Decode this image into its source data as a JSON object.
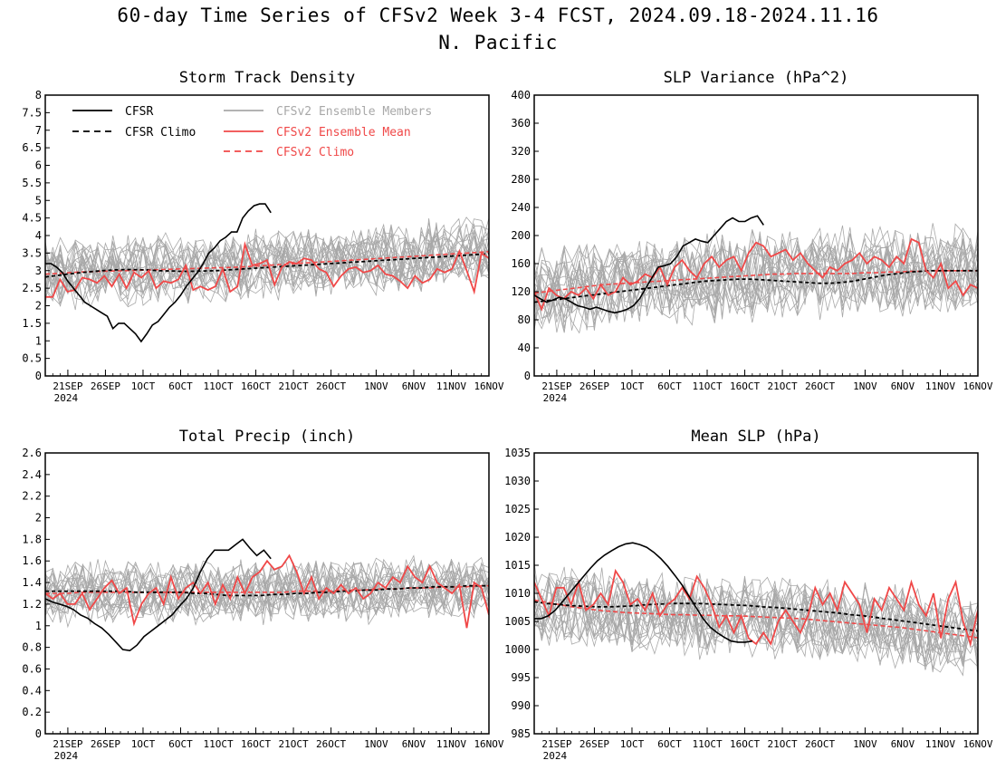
{
  "title_line1": "60-day Time Series of CFSv2 Week 3-4 FCST, 2024.09.18-2024.11.16",
  "title_line2": "N. Pacific",
  "legend": {
    "cfsr": "CFSR",
    "cfsr_climo": "CFSR Climo",
    "members": "CFSv2 Ensemble Members",
    "ens_mean": "CFSv2 Ensemble Mean",
    "cfsv2_climo": "CFSv2 Climo"
  },
  "x_ticks": [
    "21SEP",
    "26SEP",
    "1OCT",
    "6OCT",
    "11OCT",
    "16OCT",
    "21OCT",
    "26OCT",
    "1NOV",
    "6NOV",
    "11NOV",
    "16NOV"
  ],
  "x_year_label": "2024",
  "colors": {
    "cfsr": "#000000",
    "members": "#a8a8a8",
    "ens_mean": "#f04848",
    "climo_red": "#f04848"
  },
  "chart_data": [
    {
      "type": "line",
      "title": "Storm Track Density",
      "x_start": "2024-09-18",
      "x_end": "2024-11-16",
      "ylim": [
        0,
        8
      ],
      "yticks": [
        "0",
        "0.5",
        "1",
        "1.5",
        "2",
        "2.5",
        "3",
        "3.5",
        "4",
        "4.5",
        "5",
        "5.5",
        "6",
        "6.5",
        "7",
        "7.5",
        "8"
      ],
      "cfsr": [
        3.2,
        3.2,
        3.1,
        2.95,
        2.7,
        2.5,
        2.3,
        2.1,
        2.0,
        1.9,
        1.8,
        1.7,
        1.35,
        1.5,
        1.5,
        1.35,
        1.2,
        0.98,
        1.2,
        1.45,
        1.55,
        1.75,
        1.95,
        2.1,
        2.3,
        2.55,
        2.75,
        2.95,
        3.2,
        3.5,
        3.65,
        3.85,
        3.95,
        4.1,
        4.1,
        4.5,
        4.7,
        4.85,
        4.9,
        4.9,
        4.65
      ],
      "cfsr_climo": [
        2.82,
        2.86,
        2.9,
        2.94,
        2.97,
        3.0,
        3.02,
        3.03,
        3.03,
        3.02,
        3.0,
        2.99,
        2.98,
        2.98,
        2.99,
        3.0,
        3.02,
        3.04,
        3.06,
        3.08,
        3.1,
        3.12,
        3.14,
        3.16,
        3.18,
        3.2,
        3.22,
        3.24,
        3.26,
        3.28,
        3.3,
        3.32,
        3.34,
        3.36,
        3.38,
        3.4,
        3.42,
        3.44,
        3.46,
        3.48
      ],
      "ens_mean": [
        2.25,
        2.25,
        2.75,
        2.4,
        2.45,
        2.8,
        2.75,
        2.65,
        2.85,
        2.55,
        2.9,
        2.5,
        2.95,
        2.8,
        3.0,
        2.5,
        2.7,
        2.65,
        2.75,
        3.15,
        2.45,
        2.55,
        2.45,
        2.55,
        3.05,
        2.4,
        2.55,
        3.75,
        3.15,
        3.2,
        3.3,
        2.6,
        3.1,
        3.25,
        3.2,
        3.35,
        3.3,
        3.05,
        2.95,
        2.55,
        2.85,
        3.05,
        3.1,
        2.95,
        3.0,
        3.15,
        2.9,
        2.85,
        2.7,
        2.5,
        2.85,
        2.65,
        2.75,
        3.05,
        2.95,
        3.05,
        3.55,
        3.0,
        2.4,
        3.5,
        3.35
      ],
      "cfsv2_climo": [
        2.9,
        2.92,
        2.94,
        2.96,
        2.97,
        2.98,
        2.99,
        3.0,
        3.01,
        3.02,
        3.03,
        3.04,
        3.05,
        3.06,
        3.07,
        3.08,
        3.09,
        3.1,
        3.12,
        3.14,
        3.16,
        3.18,
        3.2,
        3.22,
        3.24,
        3.26,
        3.28,
        3.3,
        3.32,
        3.34,
        3.36,
        3.38,
        3.4,
        3.42,
        3.44,
        3.46,
        3.48,
        3.5,
        3.52,
        3.54
      ],
      "member_center": 2.95,
      "member_spread": 1.1,
      "member_min": 0
    },
    {
      "type": "line",
      "title": "SLP Variance (hPa^2)",
      "x_start": "2024-09-18",
      "x_end": "2024-11-16",
      "ylim": [
        0,
        400
      ],
      "yticks": [
        "0",
        "40",
        "80",
        "120",
        "160",
        "200",
        "240",
        "280",
        "320",
        "360",
        "400"
      ],
      "cfsr": [
        115,
        110,
        105,
        108,
        112,
        110,
        105,
        100,
        98,
        95,
        98,
        95,
        92,
        90,
        92,
        95,
        100,
        110,
        125,
        140,
        155,
        157,
        160,
        170,
        185,
        190,
        195,
        192,
        190,
        200,
        210,
        220,
        225,
        220,
        220,
        225,
        228,
        215
      ],
      "cfsr_climo": [
        105,
        107,
        109,
        111,
        113,
        115,
        117,
        119,
        121,
        123,
        125,
        127,
        129,
        131,
        133,
        135,
        136,
        137,
        138,
        138,
        137,
        136,
        135,
        134,
        133,
        132,
        132,
        133,
        135,
        138,
        141,
        144,
        146,
        148,
        149,
        150,
        150,
        150,
        150,
        150
      ],
      "ens_mean": [
        120,
        95,
        125,
        115,
        110,
        120,
        115,
        125,
        110,
        130,
        115,
        120,
        140,
        130,
        135,
        145,
        140,
        155,
        130,
        155,
        165,
        150,
        140,
        160,
        170,
        155,
        165,
        170,
        150,
        175,
        190,
        185,
        170,
        175,
        180,
        165,
        175,
        160,
        150,
        140,
        155,
        150,
        160,
        165,
        175,
        160,
        170,
        165,
        155,
        170,
        160,
        195,
        190,
        150,
        140,
        160,
        125,
        135,
        115,
        130,
        125
      ],
      "cfsv2_climo": [
        118,
        120,
        122,
        124,
        126,
        128,
        130,
        131,
        132,
        133,
        134,
        135,
        136,
        137,
        138,
        139,
        140,
        141,
        142,
        143,
        144,
        145,
        145,
        146,
        146,
        146,
        146,
        146,
        146,
        147,
        147,
        148,
        148,
        149,
        149,
        150,
        150,
        150,
        150,
        150
      ],
      "member_center": 145,
      "member_spread": 70,
      "member_min": 0
    },
    {
      "type": "line",
      "title": "Total Precip (inch)",
      "x_start": "2024-09-18",
      "x_end": "2024-11-16",
      "ylim": [
        0,
        2.6
      ],
      "yticks": [
        "0",
        "0.2",
        "0.4",
        "0.6",
        "0.8",
        "1",
        "1.2",
        "1.4",
        "1.6",
        "1.8",
        "2",
        "2.2",
        "2.4",
        "2.6"
      ],
      "cfsr": [
        1.25,
        1.22,
        1.2,
        1.18,
        1.15,
        1.1,
        1.07,
        1.02,
        0.98,
        0.92,
        0.85,
        0.78,
        0.77,
        0.82,
        0.9,
        0.95,
        1.0,
        1.05,
        1.1,
        1.18,
        1.25,
        1.35,
        1.5,
        1.62,
        1.7,
        1.7,
        1.7,
        1.75,
        1.8,
        1.72,
        1.65,
        1.7,
        1.62
      ],
      "cfsr_climo": [
        1.32,
        1.32,
        1.32,
        1.32,
        1.32,
        1.32,
        1.32,
        1.32,
        1.31,
        1.31,
        1.31,
        1.31,
        1.31,
        1.3,
        1.3,
        1.29,
        1.28,
        1.28,
        1.28,
        1.28,
        1.29,
        1.29,
        1.3,
        1.3,
        1.31,
        1.31,
        1.32,
        1.32,
        1.33,
        1.33,
        1.34,
        1.34,
        1.35,
        1.35,
        1.36,
        1.36,
        1.36,
        1.37,
        1.37,
        1.37
      ],
      "ens_mean": [
        1.3,
        1.25,
        1.3,
        1.2,
        1.2,
        1.3,
        1.15,
        1.25,
        1.35,
        1.42,
        1.3,
        1.35,
        1.02,
        1.2,
        1.3,
        1.35,
        1.2,
        1.45,
        1.25,
        1.35,
        1.4,
        1.3,
        1.4,
        1.2,
        1.38,
        1.25,
        1.45,
        1.3,
        1.45,
        1.5,
        1.6,
        1.52,
        1.55,
        1.65,
        1.5,
        1.3,
        1.45,
        1.25,
        1.35,
        1.3,
        1.38,
        1.3,
        1.35,
        1.25,
        1.3,
        1.4,
        1.35,
        1.45,
        1.4,
        1.55,
        1.45,
        1.4,
        1.55,
        1.4,
        1.35,
        1.3,
        1.38,
        0.98,
        1.4,
        1.35,
        1.1
      ],
      "cfsv2_climo": [
        1.3,
        1.3,
        1.3,
        1.31,
        1.31,
        1.31,
        1.31,
        1.31,
        1.31,
        1.31,
        1.31,
        1.31,
        1.31,
        1.31,
        1.31,
        1.31,
        1.31,
        1.31,
        1.31,
        1.31,
        1.31,
        1.31,
        1.32,
        1.32,
        1.32,
        1.32,
        1.33,
        1.33,
        1.33,
        1.34,
        1.34,
        1.34,
        1.35,
        1.35,
        1.35,
        1.36,
        1.36,
        1.36,
        1.37,
        1.37
      ],
      "member_center": 1.35,
      "member_spread": 0.32,
      "member_min": 0
    },
    {
      "type": "line",
      "title": "Mean SLP (hPa)",
      "x_start": "2024-09-18",
      "x_end": "2024-11-16",
      "ylim": [
        985,
        1035
      ],
      "yticks": [
        "985",
        "990",
        "995",
        "1000",
        "1005",
        "1010",
        "1015",
        "1020",
        "1025",
        "1030",
        "1035"
      ],
      "cfsr": [
        1005.5,
        1005.5,
        1006.0,
        1007.0,
        1008.5,
        1010.0,
        1011.5,
        1013.0,
        1014.5,
        1015.8,
        1016.8,
        1017.6,
        1018.3,
        1018.8,
        1019.0,
        1018.7,
        1018.2,
        1017.3,
        1016.2,
        1014.8,
        1013.2,
        1011.5,
        1009.5,
        1007.5,
        1005.5,
        1004.0,
        1003.0,
        1002.2,
        1001.5,
        1001.3,
        1001.3,
        1001.5
      ],
      "cfsr_climo": [
        1008.5,
        1008.2,
        1008.0,
        1007.8,
        1007.7,
        1007.6,
        1007.6,
        1007.7,
        1007.8,
        1008.0,
        1008.1,
        1008.2,
        1008.2,
        1008.2,
        1008.1,
        1008.0,
        1007.9,
        1007.8,
        1007.6,
        1007.5,
        1007.3,
        1007.1,
        1006.9,
        1006.7,
        1006.5,
        1006.2,
        1006.0,
        1005.7,
        1005.4,
        1005.1,
        1004.8,
        1004.5,
        1004.2,
        1003.9,
        1003.6,
        1003.3
      ],
      "ens_mean": [
        1012,
        1009,
        1006,
        1011,
        1011,
        1008,
        1012,
        1007,
        1008,
        1010,
        1008,
        1014,
        1012,
        1008,
        1009,
        1007,
        1010,
        1006,
        1008,
        1009,
        1011,
        1009,
        1013,
        1011,
        1008,
        1004,
        1006,
        1003,
        1006,
        1002,
        1001,
        1003,
        1001,
        1005,
        1007,
        1005,
        1003,
        1006,
        1011,
        1008,
        1010,
        1007,
        1012,
        1010,
        1008,
        1003,
        1009,
        1007,
        1011,
        1009,
        1007,
        1012,
        1008,
        1006,
        1010,
        1002,
        1009,
        1012,
        1005,
        1001,
        1007
      ],
      "cfsv2_climo": [
        1008.8,
        1008.4,
        1008.0,
        1007.6,
        1007.3,
        1007.0,
        1006.8,
        1006.6,
        1006.5,
        1006.4,
        1006.3,
        1006.2,
        1006.2,
        1006.1,
        1006.1,
        1006.0,
        1006.0,
        1005.9,
        1005.8,
        1005.7,
        1005.6,
        1005.5,
        1005.3,
        1005.1,
        1004.9,
        1004.7,
        1004.5,
        1004.3,
        1004.1,
        1003.9,
        1003.6,
        1003.3,
        1003.0,
        1002.7,
        1002.4,
        1002.1
      ],
      "member_center": 1006,
      "member_spread": 8,
      "member_min": 985
    }
  ]
}
